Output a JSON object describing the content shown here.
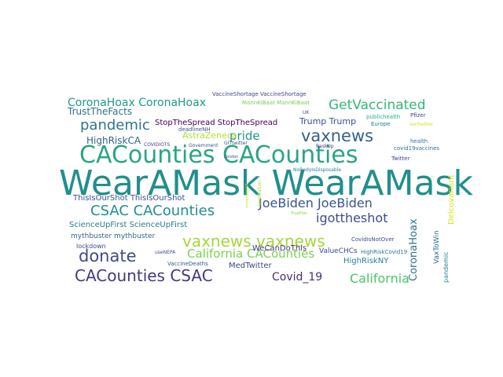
{
  "words": [
    {
      "text": "WearAMask WearAMask",
      "color": "#218f8c"
    },
    {
      "text": "CACounties CACounties",
      "color": "#29a586"
    },
    {
      "text": "vaxnews vaxnews",
      "color": "#a5d63e"
    },
    {
      "text": "CACounties CSAC",
      "color": "#453781"
    },
    {
      "text": "donate",
      "color": "#3f4b89"
    },
    {
      "text": "CSAC CACounties",
      "color": "#21908c"
    },
    {
      "text": "pandemic",
      "color": "#2a768e"
    },
    {
      "text": "vaxnews",
      "color": "#34618d"
    },
    {
      "text": "JoeBiden JoeBiden",
      "color": "#39568c"
    },
    {
      "text": "California CACounties",
      "color": "#7ad151"
    },
    {
      "text": "GetVaccinated",
      "color": "#35b779"
    },
    {
      "text": "CoronaHoax CoronaHoax",
      "color": "#1e9c89"
    },
    {
      "text": "igottheshot",
      "color": "#3e4c8a"
    },
    {
      "text": "California",
      "color": "#4ec36b"
    },
    {
      "text": "Covid_19",
      "color": "#472d7b"
    },
    {
      "text": "CoronaHoax",
      "color": "#2d718e"
    },
    {
      "text": "HighRiskCA",
      "color": "#33638d"
    },
    {
      "text": "pride",
      "color": "#1f968b"
    },
    {
      "text": "ThisIsOurShot ThisIsOurShot",
      "color": "#3b528b"
    },
    {
      "text": "ScienceUpFirst ScienceUpFirst",
      "color": "#287d8e"
    },
    {
      "text": "TrustTheFacts",
      "color": "#2c728e"
    },
    {
      "text": "StopTheSpread StopTheSpread",
      "color": "#440154"
    },
    {
      "text": "AstraZeneca",
      "color": "#b5de2b"
    },
    {
      "text": "Trump Trump",
      "color": "#3b528b"
    },
    {
      "text": "HighRiskNY",
      "color": "#25838e"
    },
    {
      "text": "MedTwitter",
      "color": "#3e4989"
    },
    {
      "text": "WeCanDoThis",
      "color": "#46327e"
    },
    {
      "text": "mythbuster mythbuster",
      "color": "#31688e"
    },
    {
      "text": "Delcovariant",
      "color": "#d8e219"
    },
    {
      "text": "ValueCHCs",
      "color": "#3e4a89"
    },
    {
      "text": "VaxToWin",
      "color": "#2c728e"
    },
    {
      "text": "pandemic",
      "color": "#26828e"
    },
    {
      "text": "VaccineShortage VaccineShortage",
      "color": "#414487"
    },
    {
      "text": "MannKiBaat MannKiBaat",
      "color": "#70cf57"
    },
    {
      "text": "deadlineNH",
      "color": "#3b528b"
    },
    {
      "text": "publichealth",
      "color": "#26ad81"
    },
    {
      "text": "Pfizer",
      "color": "#3f4788"
    },
    {
      "text": "Europe",
      "color": "#2a788e"
    },
    {
      "text": "health",
      "color": "#2e6e8e"
    },
    {
      "text": "Twitter",
      "color": "#404588"
    },
    {
      "text": "covid19vaccines",
      "color": "#2e6f8e"
    },
    {
      "text": "UK",
      "color": "#3d4e8a"
    },
    {
      "text": "RaskUp",
      "color": "#46337f"
    },
    {
      "text": "lockdown",
      "color": "#3e4989"
    },
    {
      "text": "Government",
      "color": "#3b518b"
    },
    {
      "text": "COVIDIOTS",
      "color": "#433e85"
    },
    {
      "text": "GITtwitter",
      "color": "#3b518b"
    },
    {
      "text": "CovidIsNotOver",
      "color": "#3e4c8a"
    },
    {
      "text": "HighRiskCovid19",
      "color": "#2a778e"
    },
    {
      "text": "VaccineDeaths",
      "color": "#3a548c"
    },
    {
      "text": "NoBodyIsDisposable",
      "color": "#26828e"
    },
    {
      "text": "Ventilation",
      "color": "#b2dd2d"
    },
    {
      "text": "ImmunizeCA",
      "color": "#c2df23"
    },
    {
      "text": "useNEPA",
      "color": "#3d4e8a"
    },
    {
      "text": "TruePlan",
      "color": "#89d548"
    },
    {
      "text": "GetTheShot",
      "color": "#c8e020"
    },
    {
      "text": "London",
      "color": "#3f4788"
    }
  ]
}
